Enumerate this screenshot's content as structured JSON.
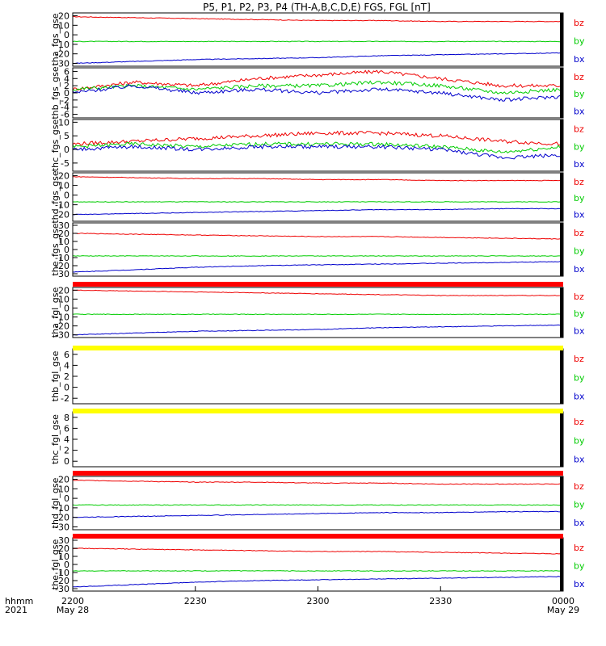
{
  "title": "P5, P1, P2, P3, P4 (TH-A,B,C,D,E) FGS, FGL [nT]",
  "x_time_label": "hhmm",
  "x_year_label": "2021",
  "x_ticks": [
    {
      "main": "2200",
      "sub": "May 28"
    },
    {
      "main": "2230",
      "sub": ""
    },
    {
      "main": "2300",
      "sub": ""
    },
    {
      "main": "2330",
      "sub": ""
    },
    {
      "main": "0000",
      "sub": "May 29"
    }
  ],
  "colors": {
    "bx": "#0000cc",
    "by": "#00cc00",
    "bz": "#ee0000",
    "axis": "#000000"
  },
  "chart_data": [
    {
      "type": "line",
      "ylabel": "tha_fgs_gse",
      "yticks": [
        "20",
        "10",
        "0",
        "-10",
        "-20",
        "-30"
      ],
      "ylim": [
        -33,
        23
      ],
      "series": [
        {
          "name": "bz",
          "values": [
            19,
            18,
            17,
            16,
            15,
            15,
            14,
            14,
            14
          ]
        },
        {
          "name": "by",
          "values": [
            -7,
            -7,
            -7,
            -7,
            -7,
            -7,
            -7,
            -7,
            -7
          ]
        },
        {
          "name": "bx",
          "values": [
            -30,
            -28,
            -26,
            -25,
            -24,
            -22,
            -21,
            -20,
            -19
          ]
        }
      ]
    },
    {
      "type": "line",
      "ylabel": "thb_fgs_gse",
      "yticks": [
        "6",
        "4",
        "2",
        "0",
        "-2",
        "-4",
        "-6"
      ],
      "ylim": [
        -7,
        7
      ],
      "series": [
        {
          "name": "bz",
          "values": [
            1,
            3,
            2,
            4,
            5,
            6,
            4,
            2,
            2
          ]
        },
        {
          "name": "by",
          "values": [
            1,
            2,
            1,
            2,
            2,
            3,
            2,
            0,
            1
          ]
        },
        {
          "name": "bx",
          "values": [
            0,
            2,
            0,
            1,
            0,
            1,
            0,
            -2,
            -1
          ]
        }
      ]
    },
    {
      "type": "line",
      "ylabel": "thc_fgs_gse",
      "yticks": [
        "10",
        "5",
        "0",
        "-5"
      ],
      "ylim": [
        -8,
        11
      ],
      "series": [
        {
          "name": "bz",
          "values": [
            2,
            3,
            4,
            5,
            6,
            6,
            5,
            3,
            2
          ]
        },
        {
          "name": "by",
          "values": [
            1,
            2,
            1,
            2,
            2,
            2,
            1,
            -1,
            1
          ]
        },
        {
          "name": "bx",
          "values": [
            0,
            1,
            0,
            1,
            1,
            1,
            0,
            -3,
            -2
          ]
        }
      ]
    },
    {
      "type": "line",
      "ylabel": "thd_fgs_gse",
      "yticks": [
        "20",
        "10",
        "0",
        "-10",
        "-20"
      ],
      "ylim": [
        -27,
        23
      ],
      "series": [
        {
          "name": "bz",
          "values": [
            19,
            18,
            17,
            17,
            16,
            16,
            15,
            15,
            15
          ]
        },
        {
          "name": "by",
          "values": [
            -7,
            -7,
            -7,
            -7,
            -7,
            -7,
            -7,
            -7,
            -7
          ]
        },
        {
          "name": "bx",
          "values": [
            -20,
            -19,
            -18,
            -17,
            -16,
            -15,
            -15,
            -14,
            -14
          ]
        }
      ]
    },
    {
      "type": "line",
      "ylabel": "the_fgs_gse",
      "yticks": [
        "30",
        "20",
        "10",
        "0",
        "-10",
        "-20",
        "-30"
      ],
      "ylim": [
        -33,
        33
      ],
      "series": [
        {
          "name": "bz",
          "values": [
            20,
            19,
            18,
            17,
            16,
            16,
            15,
            14,
            13
          ]
        },
        {
          "name": "by",
          "values": [
            -8,
            -8,
            -8,
            -8,
            -8,
            -8,
            -8,
            -8,
            -8
          ]
        },
        {
          "name": "bx",
          "values": [
            -28,
            -25,
            -22,
            -20,
            -19,
            -18,
            -17,
            -16,
            -15
          ]
        }
      ]
    },
    {
      "type": "line",
      "ylabel": "tha_fgl_gse",
      "yticks": [
        "20",
        "10",
        "0",
        "-10",
        "-20",
        "-30"
      ],
      "ylim": [
        -33,
        23
      ],
      "series": [
        {
          "name": "bz",
          "values": [
            20,
            19,
            18,
            17,
            16,
            15,
            14,
            14,
            14
          ]
        },
        {
          "name": "by",
          "values": [
            -7,
            -7,
            -7,
            -7,
            -7,
            -7,
            -7,
            -7,
            -7
          ]
        },
        {
          "name": "bx",
          "values": [
            -30,
            -28,
            -26,
            -25,
            -24,
            -22,
            -21,
            -20,
            -19
          ]
        }
      ]
    },
    {
      "type": "line",
      "ylabel": "thb_fgl_gse",
      "yticks": [
        "6",
        "4",
        "2",
        "0",
        "-2"
      ],
      "ylim": [
        -3,
        7
      ],
      "series": [
        {
          "name": "bz",
          "values": []
        },
        {
          "name": "by",
          "values": []
        },
        {
          "name": "bx",
          "values": []
        }
      ]
    },
    {
      "type": "line",
      "ylabel": "thc_fgl_gse",
      "yticks": [
        "8",
        "6",
        "4",
        "2",
        "0"
      ],
      "ylim": [
        -1,
        9
      ],
      "series": [
        {
          "name": "bz",
          "values": []
        },
        {
          "name": "by",
          "values": []
        },
        {
          "name": "bx",
          "values": []
        }
      ]
    },
    {
      "type": "line",
      "ylabel": "thd_fgl_gse",
      "yticks": [
        "20",
        "10",
        "0",
        "-10",
        "-20",
        "-30"
      ],
      "ylim": [
        -33,
        23
      ],
      "series": [
        {
          "name": "bz",
          "values": [
            19,
            18,
            17,
            17,
            16,
            16,
            15,
            15,
            15
          ]
        },
        {
          "name": "by",
          "values": [
            -7,
            -7,
            -7,
            -7,
            -7,
            -7,
            -7,
            -7,
            -7
          ]
        },
        {
          "name": "bx",
          "values": [
            -20,
            -19,
            -18,
            -17,
            -16,
            -15,
            -15,
            -14,
            -14
          ]
        }
      ]
    },
    {
      "type": "line",
      "ylabel": "the_fgl_gse",
      "yticks": [
        "30",
        "20",
        "10",
        "0",
        "-10",
        "-20",
        "-30"
      ],
      "ylim": [
        -33,
        33
      ],
      "series": [
        {
          "name": "bz",
          "values": [
            20,
            19,
            18,
            17,
            16,
            16,
            15,
            14,
            13
          ]
        },
        {
          "name": "by",
          "values": [
            -8,
            -8,
            -8,
            -8,
            -8,
            -8,
            -8,
            -8,
            -8
          ]
        },
        {
          "name": "bx",
          "values": [
            -28,
            -25,
            -22,
            -20,
            -19,
            -18,
            -17,
            -16,
            -15
          ]
        }
      ]
    }
  ],
  "bars": [
    {
      "between": [
        4,
        5
      ],
      "color": "#ff0000"
    },
    {
      "between": [
        5,
        6
      ],
      "color": "#ffff00"
    },
    {
      "between": [
        6,
        7
      ],
      "color": "#ffff00"
    },
    {
      "between": [
        7,
        8
      ],
      "color": "#ff0000"
    },
    {
      "between": [
        8,
        9
      ],
      "color": "#ff0000"
    }
  ]
}
